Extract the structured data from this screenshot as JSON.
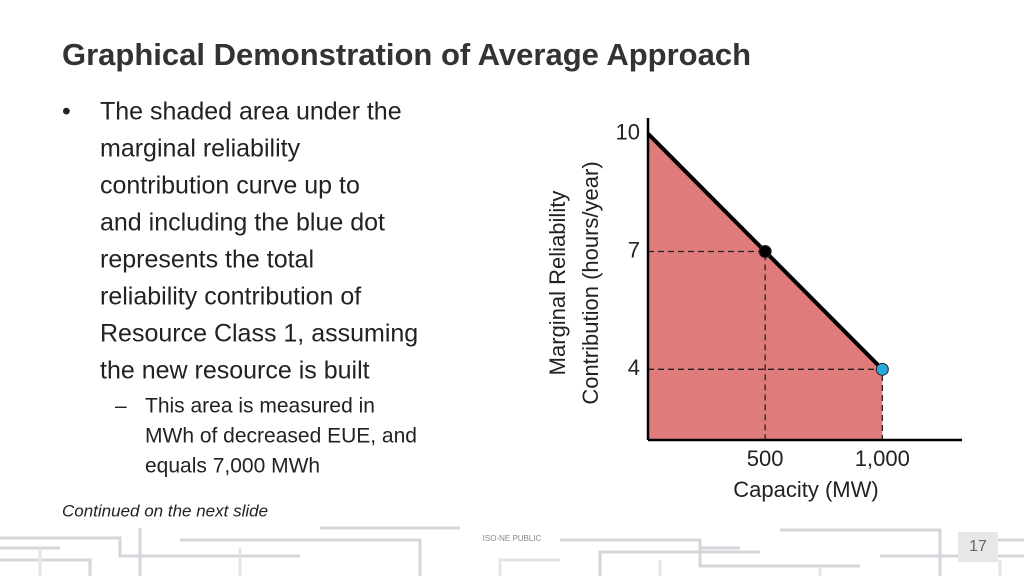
{
  "title": "Graphical Demonstration of Average Approach",
  "bullet": {
    "marker": "•",
    "lines": [
      "The shaded area under the",
      "marginal reliability",
      "contribution curve up to",
      "and including the blue dot",
      "represents the total",
      "reliability contribution of",
      "Resource Class 1, assuming",
      "the new resource is built"
    ]
  },
  "sub_bullet": {
    "marker": "–",
    "lines": [
      "This area is measured in",
      "MWh of decreased EUE, and",
      "equals 7,000 MWh"
    ]
  },
  "note": "Continued on the next slide",
  "footer": {
    "classification": "ISO-NE PUBLIC",
    "page": "17"
  },
  "chart_data": {
    "type": "line",
    "xlabel": "Capacity (MW)",
    "ylabel": [
      "Marginal Reliability",
      "Contribution (hours/year)"
    ],
    "x": [
      0,
      1000
    ],
    "values": [
      10,
      4
    ],
    "color": "#000000",
    "fill": "#e07b7b",
    "points": [
      {
        "x": 500,
        "y": 7,
        "color": "#000000"
      },
      {
        "x": 1000,
        "y": 4,
        "color": "#29a8e0"
      }
    ],
    "xlim": [
      0,
      1340
    ],
    "ylim": [
      2.2,
      10.4
    ],
    "xticks": [
      500,
      {
        "value": 1000,
        "label": "1,000"
      }
    ],
    "yticks": [
      4,
      7,
      10
    ],
    "grid": false
  }
}
